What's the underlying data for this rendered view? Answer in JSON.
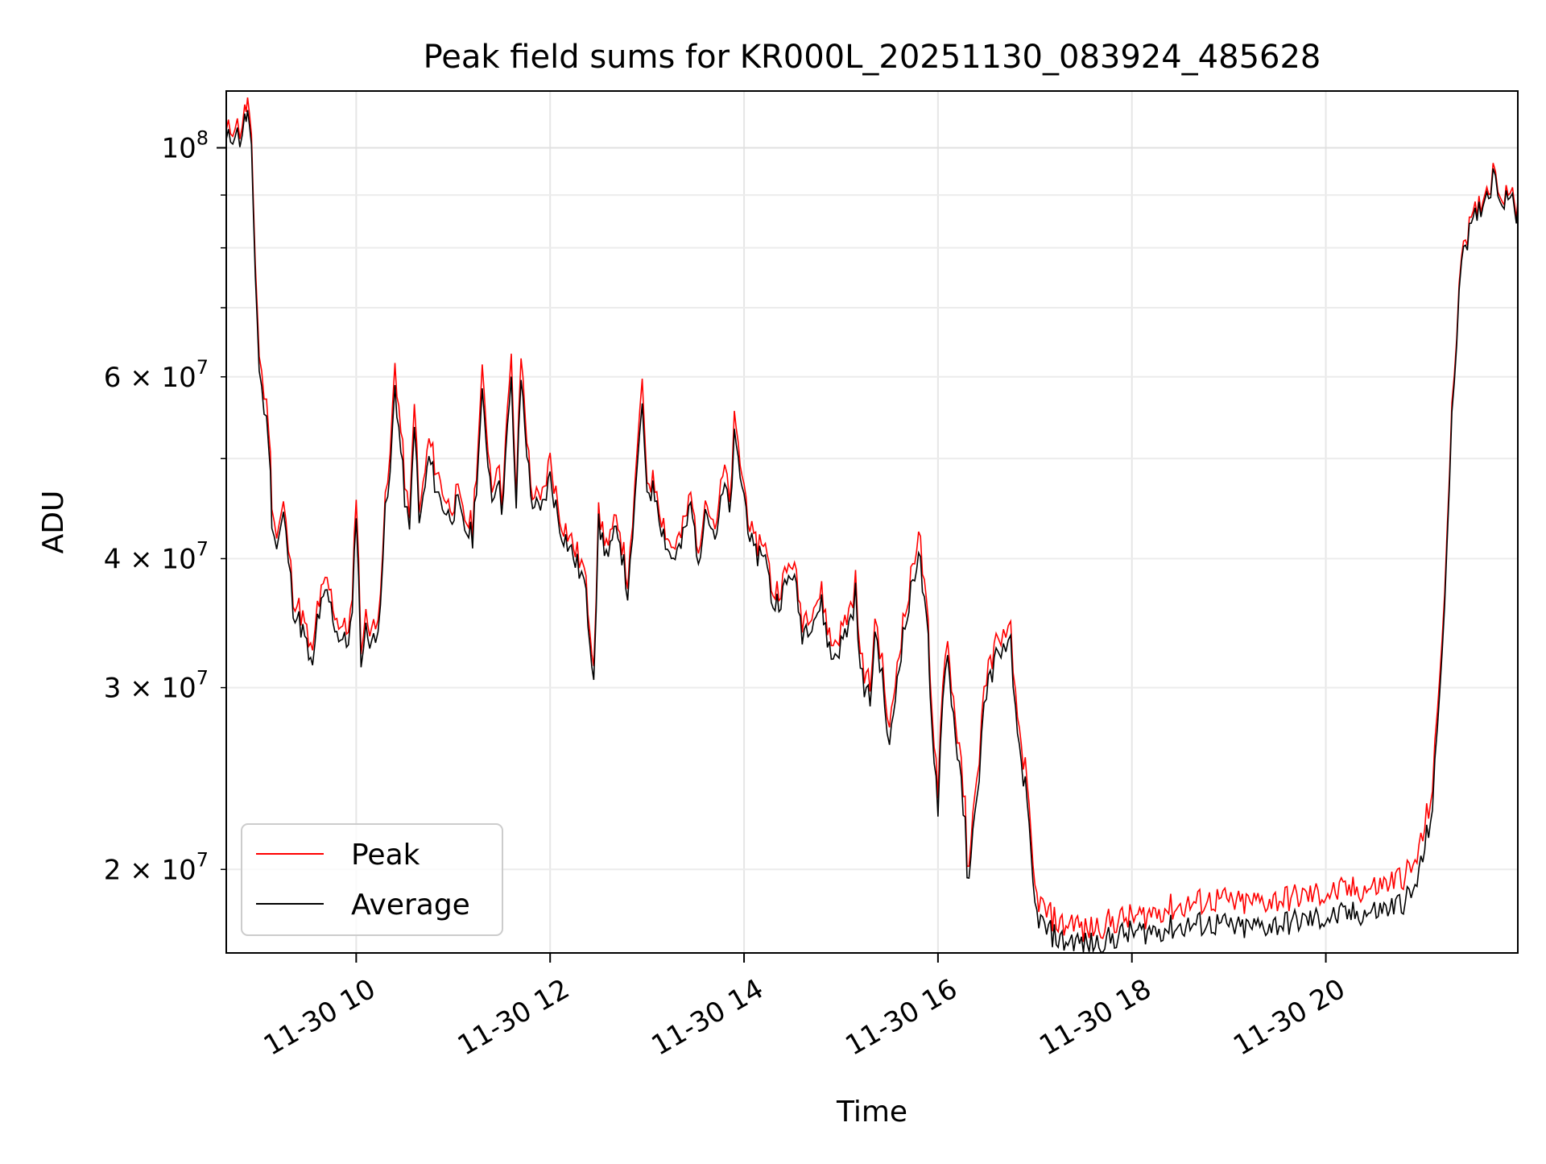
{
  "chart_data": {
    "type": "line",
    "title": "Peak field sums for KR000L_20251130_083924_485628",
    "xlabel": "Time",
    "ylabel": "ADU",
    "yscale": "log",
    "grid": true,
    "legend_position": "lower-left",
    "x_unit": "hours since 2025-11-30 00:00",
    "xlim": [
      8.66,
      21.98
    ],
    "ylim": [
      16600000,
      113500000
    ],
    "x_ticks": [
      {
        "value": 10,
        "label": "11-30 10"
      },
      {
        "value": 12,
        "label": "11-30 12"
      },
      {
        "value": 14,
        "label": "11-30 14"
      },
      {
        "value": 16,
        "label": "11-30 16"
      },
      {
        "value": 18,
        "label": "11-30 18"
      },
      {
        "value": 20,
        "label": "11-30 20"
      }
    ],
    "y_major_ticks": [
      {
        "value": 100000000,
        "mantissa": "",
        "base": "10",
        "exp": "8"
      }
    ],
    "y_minor_ticks": [
      {
        "value": 20000000,
        "mantissa": "2 × ",
        "base": "10",
        "exp": "7"
      },
      {
        "value": 30000000,
        "mantissa": "3 × ",
        "base": "10",
        "exp": "7"
      },
      {
        "value": 40000000,
        "mantissa": "4 × ",
        "base": "10",
        "exp": "7"
      },
      {
        "value": 50000000,
        "mantissa": "",
        "base": "",
        "exp": ""
      },
      {
        "value": 60000000,
        "mantissa": "6 × ",
        "base": "10",
        "exp": "7"
      },
      {
        "value": 70000000,
        "mantissa": "",
        "base": "",
        "exp": ""
      },
      {
        "value": 80000000,
        "mantissa": "",
        "base": "",
        "exp": ""
      },
      {
        "value": 90000000,
        "mantissa": "",
        "base": "",
        "exp": ""
      }
    ],
    "series": [
      {
        "name": "Peak",
        "color": "#ff0000"
      },
      {
        "name": "Average",
        "color": "#000000"
      }
    ],
    "x": [
      8.66,
      8.75,
      8.8,
      8.85,
      8.88,
      8.92,
      8.96,
      9.0,
      9.05,
      9.1,
      9.13,
      9.18,
      9.25,
      9.3,
      9.35,
      9.45,
      9.55,
      9.6,
      9.7,
      9.8,
      9.9,
      9.96,
      10.0,
      10.05,
      10.1,
      10.2,
      10.25,
      10.3,
      10.35,
      10.4,
      10.5,
      10.55,
      10.6,
      10.65,
      10.75,
      10.85,
      10.95,
      11.05,
      11.1,
      11.2,
      11.3,
      11.4,
      11.45,
      11.5,
      11.6,
      11.65,
      11.7,
      11.8,
      11.9,
      12.0,
      12.1,
      12.2,
      12.3,
      12.35,
      12.45,
      12.5,
      12.6,
      12.7,
      12.8,
      12.85,
      12.9,
      12.95,
      13.0,
      13.1,
      13.15,
      13.25,
      13.35,
      13.45,
      13.55,
      13.6,
      13.7,
      13.8,
      13.85,
      13.9,
      14.0,
      14.1,
      14.2,
      14.3,
      14.4,
      14.5,
      14.6,
      14.7,
      14.8,
      14.9,
      15.0,
      15.1,
      15.15,
      15.2,
      15.3,
      15.35,
      15.4,
      15.45,
      15.5,
      15.6,
      15.7,
      15.8,
      15.9,
      15.92,
      15.96,
      16.0,
      16.05,
      16.1,
      16.2,
      16.28,
      16.3,
      16.4,
      16.45,
      16.5,
      16.6,
      16.65,
      16.7,
      16.75,
      16.8,
      16.9,
      17.0,
      17.1,
      17.3,
      17.4,
      17.5,
      17.7,
      17.9,
      18.1,
      18.3,
      18.5,
      18.7,
      18.9,
      19.1,
      19.3,
      19.5,
      19.7,
      19.9,
      20.1,
      20.3,
      20.5,
      20.7,
      20.9,
      21.0,
      21.1,
      21.15,
      21.2,
      21.25,
      21.3,
      21.35,
      21.4,
      21.5,
      21.6,
      21.7,
      21.75,
      21.8,
      21.9,
      21.95,
      21.98
    ],
    "peak": [
      103000000,
      106000000,
      104000000,
      108000000,
      111000000,
      100000000,
      78000000,
      63000000,
      58000000,
      54000000,
      46000000,
      42000000,
      45000000,
      41000000,
      37000000,
      35000000,
      32000000,
      36000000,
      38000000,
      35000000,
      34000000,
      36000000,
      47000000,
      33000000,
      35000000,
      34000000,
      38000000,
      45000000,
      50000000,
      62000000,
      48000000,
      43000000,
      58000000,
      44000000,
      52000000,
      48000000,
      45000000,
      46000000,
      44000000,
      43000000,
      60000000,
      47000000,
      50000000,
      46000000,
      62000000,
      46000000,
      63000000,
      47000000,
      45000000,
      50000000,
      44000000,
      42000000,
      40000000,
      39000000,
      32000000,
      44000000,
      41000000,
      44000000,
      38000000,
      42000000,
      52000000,
      58000000,
      48000000,
      47000000,
      44000000,
      41000000,
      42000000,
      46000000,
      40000000,
      47000000,
      43000000,
      49000000,
      45000000,
      54000000,
      47000000,
      41000000,
      42000000,
      37000000,
      38000000,
      40000000,
      35000000,
      36000000,
      37000000,
      33000000,
      34000000,
      36000000,
      38000000,
      32000000,
      30000000,
      35000000,
      33000000,
      30000000,
      27000000,
      33000000,
      37000000,
      43000000,
      34000000,
      30000000,
      27000000,
      24000000,
      31000000,
      33000000,
      27000000,
      23000000,
      20000000,
      24000000,
      28000000,
      31000000,
      33000000,
      34000000,
      33000000,
      34000000,
      29000000,
      25000000,
      19000000,
      18200000,
      17600000,
      17900000,
      17400000,
      17700000,
      17900000,
      18000000,
      18300000,
      18400000,
      18600000,
      18700000,
      18500000,
      18600000,
      18700000,
      18800000,
      18900000,
      19000000,
      19100000,
      19200000,
      19500000,
      20000000,
      21500000,
      24000000,
      28000000,
      34000000,
      42000000,
      55000000,
      67000000,
      81000000,
      84000000,
      89000000,
      93000000,
      96000000,
      90000000,
      92000000,
      86000000,
      89000000
    ],
    "average": [
      101000000,
      104000000,
      102000000,
      106000000,
      108000000,
      98000000,
      76000000,
      61000000,
      56000000,
      52000000,
      44000000,
      41000000,
      44000000,
      40000000,
      36000000,
      34000000,
      31000000,
      35000000,
      37000000,
      34000000,
      33000000,
      35000000,
      45000000,
      32000000,
      34000000,
      33000000,
      37000000,
      44000000,
      48000000,
      59000000,
      46000000,
      42000000,
      55000000,
      43000000,
      50000000,
      46000000,
      44000000,
      45000000,
      43000000,
      42000000,
      57000000,
      46000000,
      48000000,
      45000000,
      59000000,
      45000000,
      60000000,
      46000000,
      44000000,
      48000000,
      43000000,
      41000000,
      39000000,
      38000000,
      31000000,
      43000000,
      40000000,
      43000000,
      37000000,
      41000000,
      50000000,
      55000000,
      47000000,
      46000000,
      43000000,
      40000000,
      41000000,
      45000000,
      39000000,
      46000000,
      42000000,
      47000000,
      44000000,
      52000000,
      46000000,
      40000000,
      41000000,
      36000000,
      37000000,
      39000000,
      34000000,
      35000000,
      36000000,
      32000000,
      33000000,
      35000000,
      37000000,
      31000000,
      29000000,
      34000000,
      32000000,
      29000000,
      26000000,
      32000000,
      36000000,
      41000000,
      33000000,
      29000000,
      26000000,
      23000000,
      30000000,
      32000000,
      26000000,
      22000000,
      19500000,
      23000000,
      27000000,
      30000000,
      32000000,
      33000000,
      32000000,
      33000000,
      28000000,
      24000000,
      18300000,
      17500000,
      17000000,
      17100000,
      16900000,
      17000000,
      17300000,
      17400000,
      17500000,
      17600000,
      17700000,
      17700000,
      17500000,
      17600000,
      17700000,
      17800000,
      17900000,
      18000000,
      18100000,
      18200000,
      18400000,
      18900000,
      20500000,
      23000000,
      27000000,
      33000000,
      41000000,
      54000000,
      66000000,
      80000000,
      83000000,
      88000000,
      92000000,
      95000000,
      89000000,
      91000000,
      85000000,
      88000000
    ]
  }
}
